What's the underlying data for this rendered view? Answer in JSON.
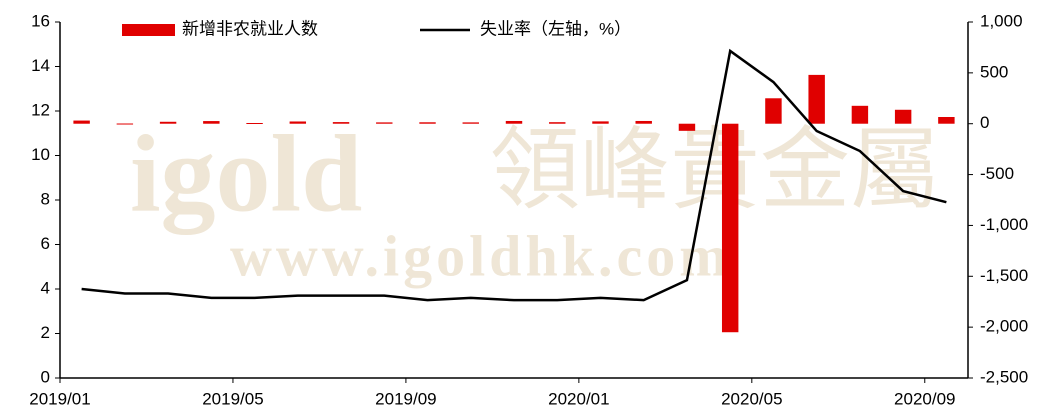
{
  "chart_data": {
    "type": "bar",
    "watermark": [
      "igold",
      "領峰貴金屬",
      "www.igoldhk.com"
    ],
    "categories": [
      "2019/01",
      null,
      null,
      null,
      "2019/05",
      null,
      null,
      null,
      "2019/09",
      null,
      null,
      null,
      "2020/01",
      null,
      null,
      null,
      "2020/05",
      null,
      null,
      null,
      "2020/09"
    ],
    "series": [
      {
        "name": "新增非农就业人数",
        "type": "bar",
        "axis": "y2",
        "color": "#e00000",
        "values": [
          31,
          2,
          19,
          26,
          7,
          22,
          16,
          13,
          14,
          13,
          27,
          15,
          23,
          27,
          -70,
          -2050,
          250,
          480,
          176,
          137,
          66
        ]
      },
      {
        "name": "失业率（左轴，%）",
        "type": "line",
        "axis": "y",
        "color": "#000000",
        "values": [
          4.0,
          3.8,
          3.8,
          3.6,
          3.6,
          3.7,
          3.7,
          3.7,
          3.5,
          3.6,
          3.5,
          3.5,
          3.6,
          3.5,
          4.4,
          14.7,
          13.3,
          11.1,
          10.2,
          8.4,
          7.9
        ]
      }
    ],
    "ylim": [
      0,
      16
    ],
    "yticks": [
      0,
      2,
      4,
      6,
      8,
      10,
      12,
      14,
      16
    ],
    "y2lim": [
      -2500,
      1000
    ],
    "y2ticks": [
      {
        "value": -2500,
        "label": "-2,500"
      },
      {
        "value": -2000,
        "label": "-2,000"
      },
      {
        "value": -1500,
        "label": "-1,500"
      },
      {
        "value": -1000,
        "label": "-1,000"
      },
      -500,
      0,
      500,
      {
        "value": 1000,
        "label": "1,000"
      }
    ],
    "legend": "top",
    "grid": false
  }
}
